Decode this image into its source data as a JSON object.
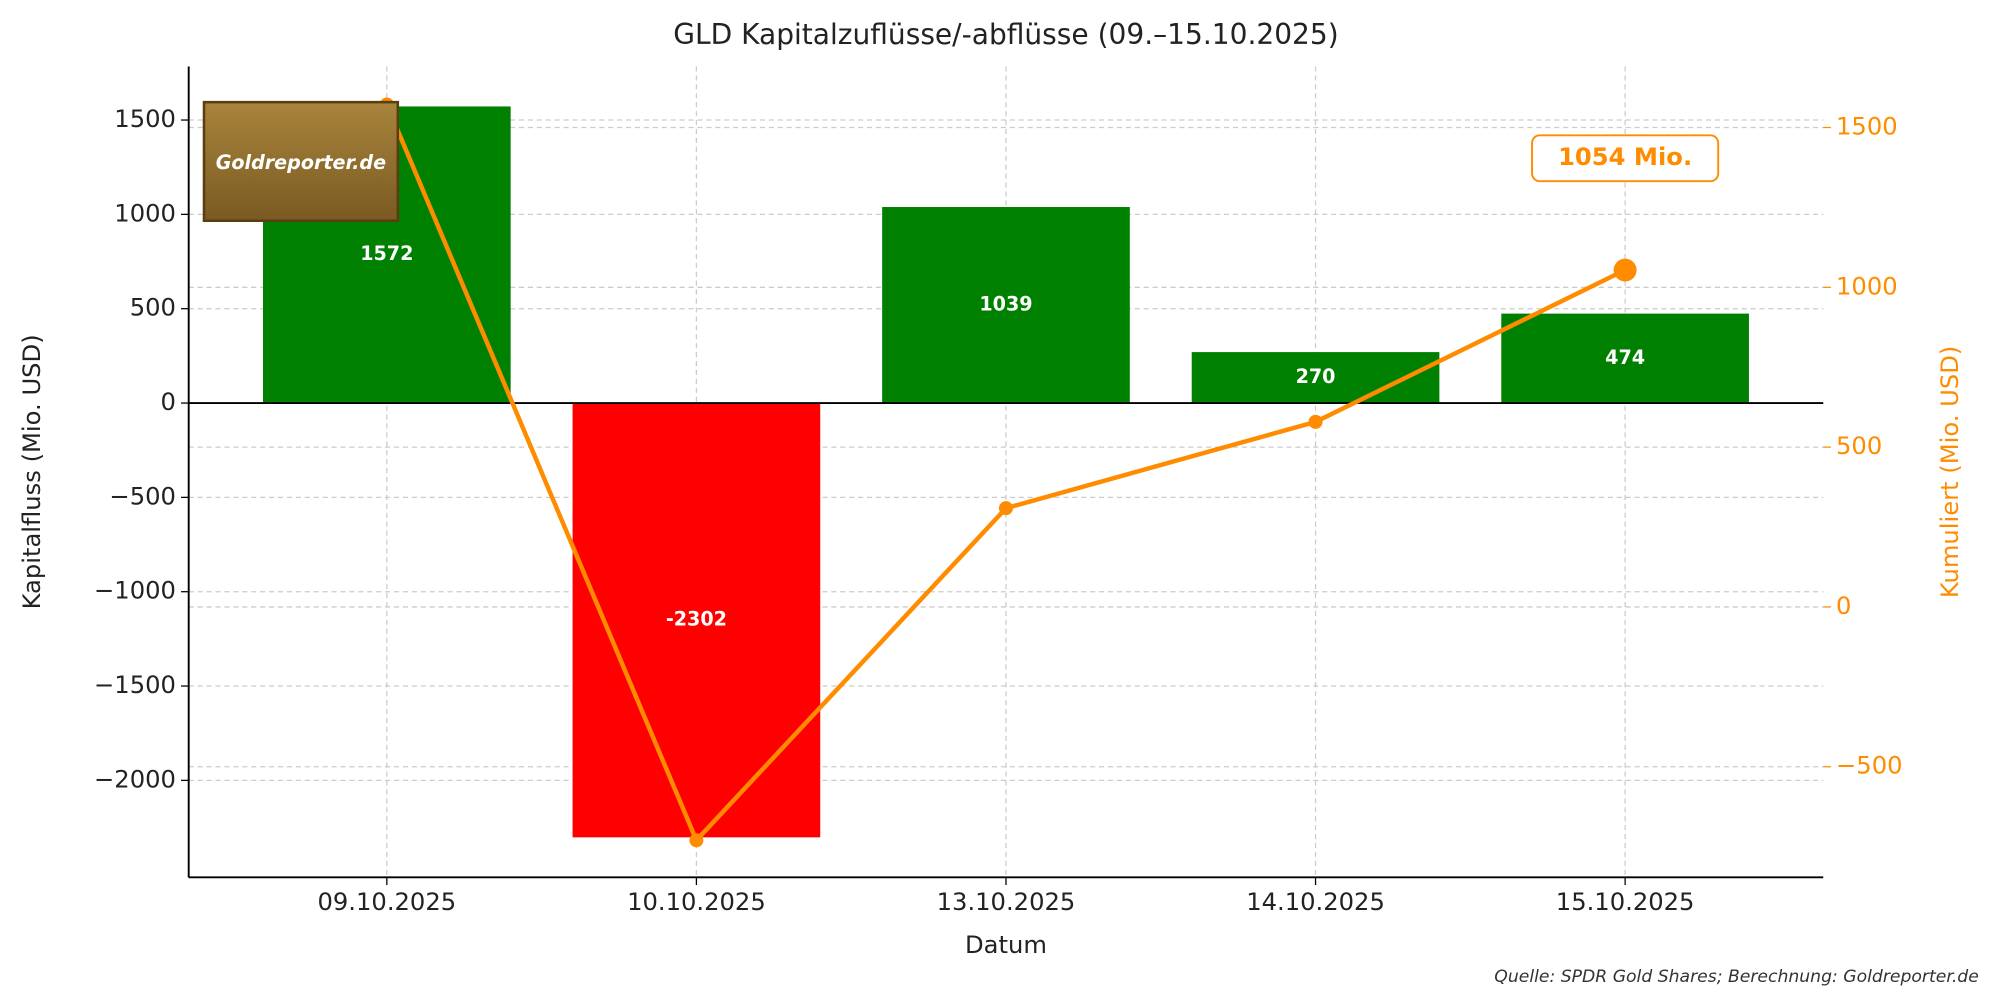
{
  "chart_data": {
    "type": "bar",
    "title": "GLD Kapitalzuflüsse/-abflüsse (09.–15.10.2025)",
    "x_label": "Datum",
    "y_label": "Kapitalfluss (Mio. USD)",
    "y2_label": "Kumuliert (Mio. USD)",
    "source": "Quelle: SPDR Gold Shares; Berechnung: Goldreporter.de",
    "logo": "Goldreporter.de",
    "annotation": "1054 Mio.",
    "categories": [
      "09.10.2025",
      "10.10.2025",
      "13.10.2025",
      "14.10.2025",
      "15.10.2025"
    ],
    "series": [
      {
        "type": "bar",
        "values": [
          1572,
          -2302,
          1039,
          270,
          474
        ],
        "positive_color": "#008000",
        "negative_color": "#ff0000"
      },
      {
        "type": "line",
        "axis": "y2",
        "color": "#ff8c00",
        "values": [
          1572,
          -730,
          309,
          579,
          1054
        ]
      }
    ],
    "ylim": [
      -2514,
      1784
    ],
    "yticks": [
      {
        "value": -2000,
        "label": "−2000"
      },
      {
        "value": -1500,
        "label": "−1500"
      },
      {
        "value": -1000,
        "label": "−1000"
      },
      {
        "value": -500,
        "label": "−500"
      },
      0,
      500,
      1000,
      1500
    ],
    "y2lim": [
      -846,
      1691
    ],
    "y2ticks": [
      {
        "value": -500,
        "label": "−500"
      },
      0,
      500,
      1000,
      1500
    ],
    "grid": true
  }
}
